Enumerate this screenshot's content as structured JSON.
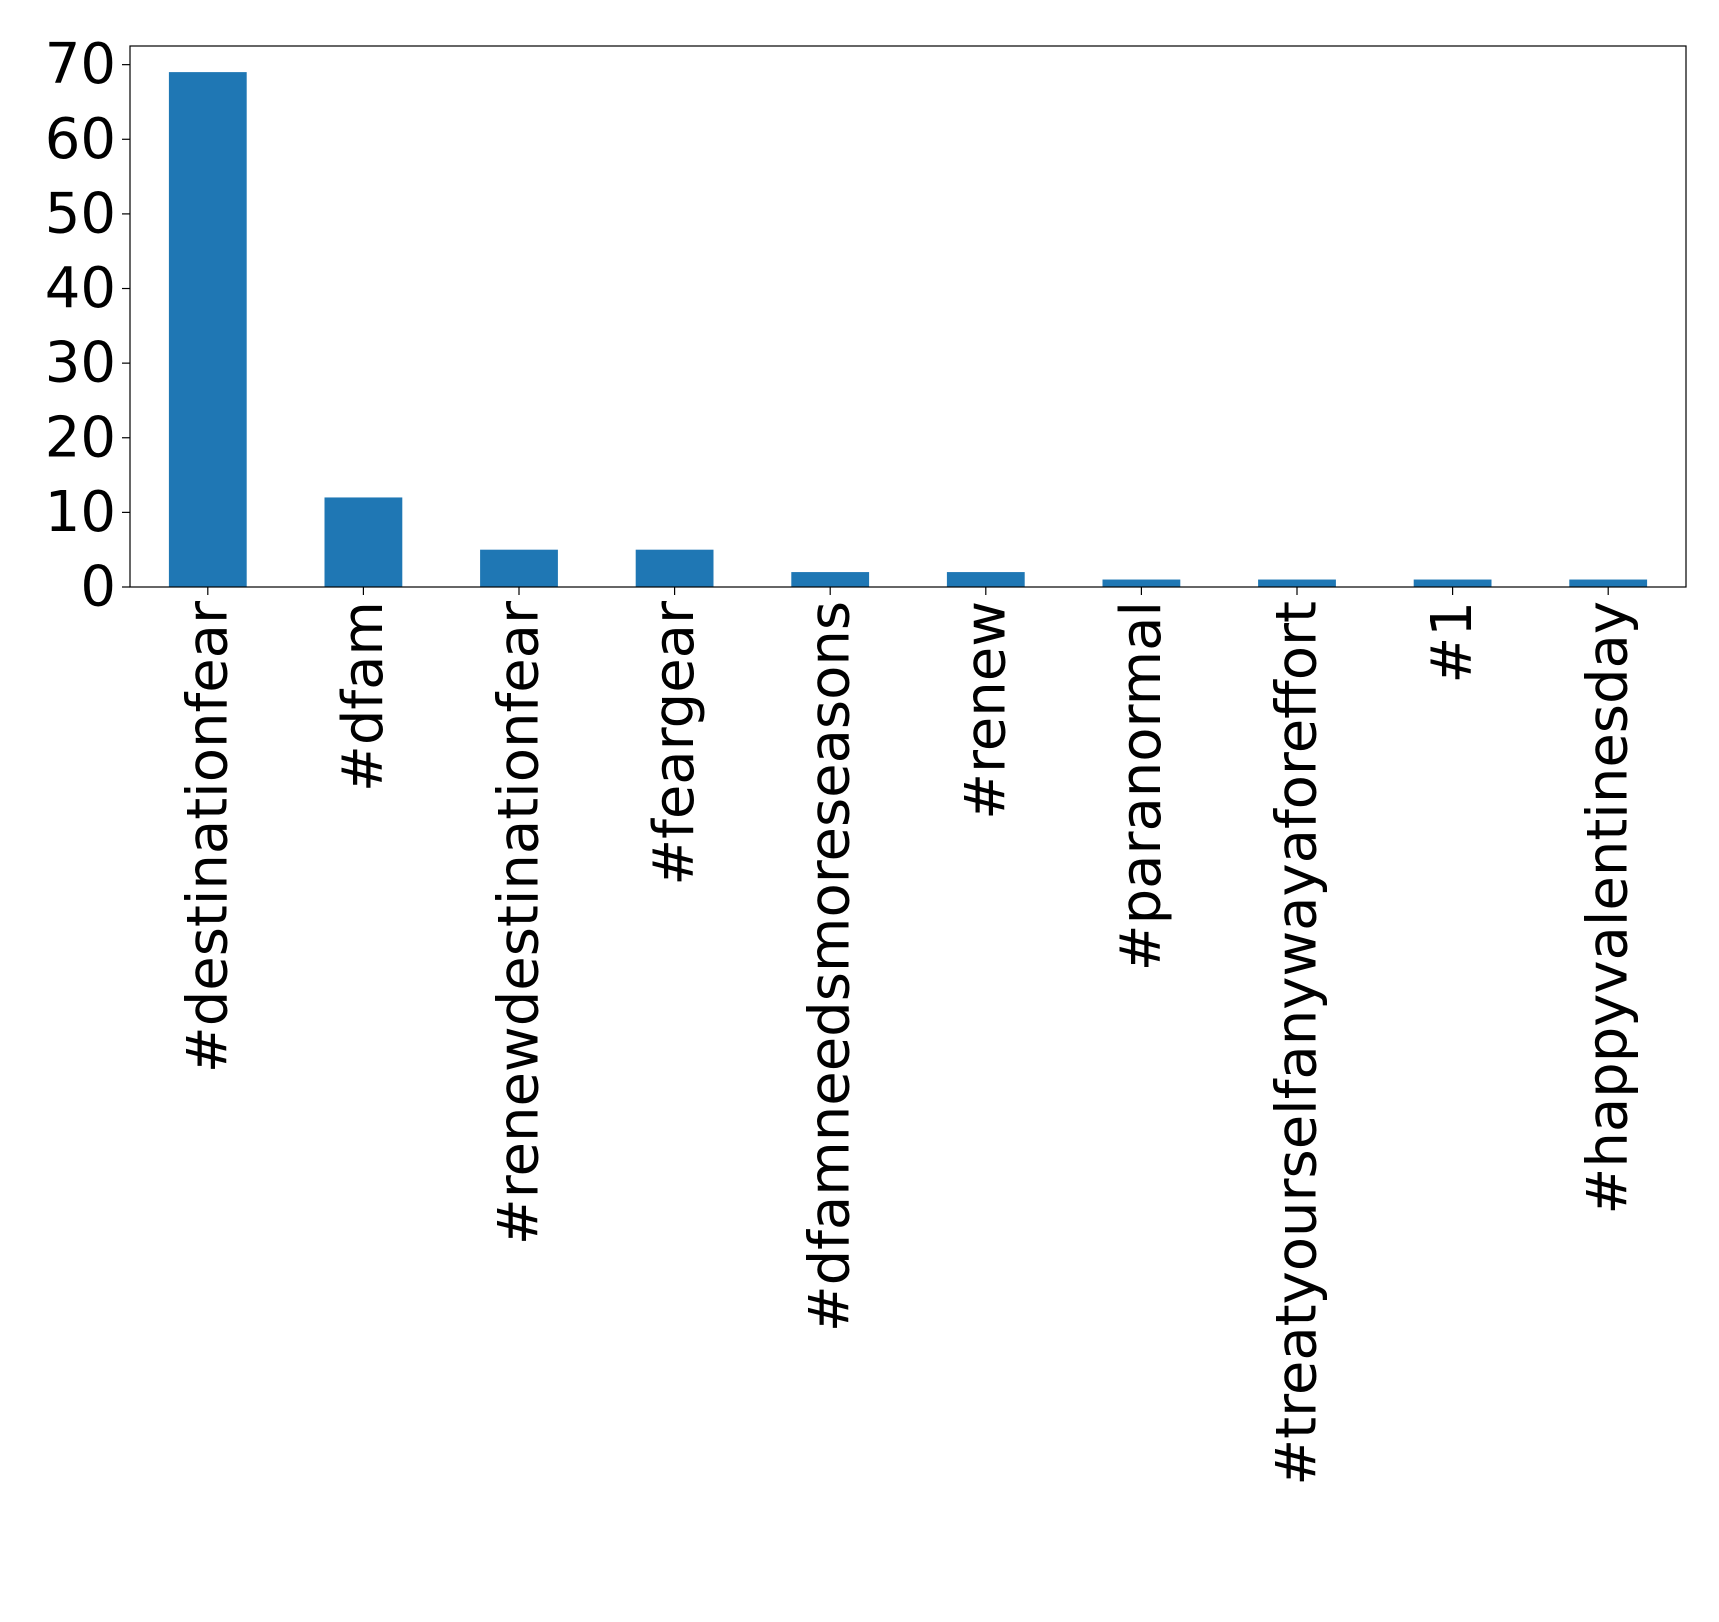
{
  "chart_data": {
    "type": "bar",
    "title": "",
    "xlabel": "",
    "ylabel": "",
    "categories": [
      "#destinationfear",
      "#dfam",
      "#renewdestinationfear",
      "#feargear",
      "#dfamneedsmoreseasons",
      "#renew",
      "#paranormal",
      "#treatyourselfanywayaforeffort",
      "#1",
      "#happyvalentinesday"
    ],
    "values": [
      69,
      12,
      5,
      5,
      2,
      2,
      1,
      1,
      1,
      1
    ],
    "ylim": [
      0,
      72.5
    ],
    "yticks": [
      0,
      10,
      20,
      30,
      40,
      50,
      60,
      70
    ],
    "grid": false,
    "bar_color": "#1f77b4"
  }
}
